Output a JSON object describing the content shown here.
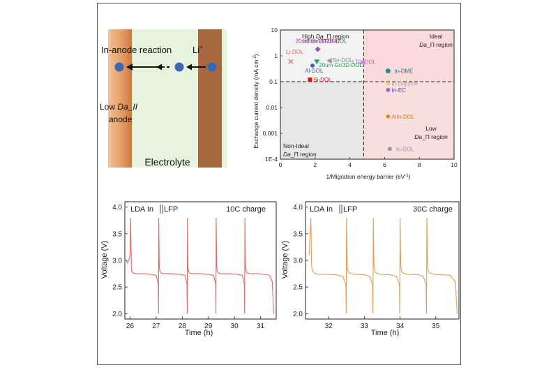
{
  "schematic": {
    "reaction_label": "In-anode reaction",
    "li_label": "Li",
    "li_sup": "+",
    "anode_label_prefix": "Low ",
    "anode_label_italic": "Da_II",
    "anode_label_line2": "anode",
    "electrolyte_label": "Electrolyte",
    "colors": {
      "anode": "#e8a06a",
      "electrolyte": "#e6f3dd",
      "cathode": "#a8683f",
      "ion": "#3a66b8"
    }
  },
  "chart_data": [
    {
      "type": "scatter",
      "xlabel": "1/Migration energy barrier (eV",
      "xlabel_sup": "-1",
      "xlabel_suffix": ")",
      "ylabel": "Exchange current density (mA cm",
      "ylabel_sup": "-2",
      "ylabel_suffix": ")",
      "xlim": [
        0,
        10
      ],
      "ylim": [
        0.0001,
        10
      ],
      "yscale": "log",
      "xticks": [
        "0",
        "2",
        "4",
        "6",
        "8",
        "10"
      ],
      "yticks": [
        "1E-4",
        "0.001",
        "0.01",
        "0.1",
        "1",
        "10"
      ],
      "threshold_x": 4.8,
      "threshold_y": 0.1,
      "regions": [
        {
          "id": "high",
          "prefix": "High ",
          "italic": "Da",
          "suffix": "_Π region"
        },
        {
          "id": "ideal",
          "line1": "Ideal",
          "italic": "Da",
          "suffix": "_Π region"
        },
        {
          "id": "nonideal",
          "line1": "Non-Ideal",
          "italic": "Da",
          "suffix": "_Π region"
        },
        {
          "id": "low",
          "line1": "Low",
          "italic": "Da",
          "suffix": "_Π region"
        }
      ],
      "points": [
        {
          "label": "Li-DOL",
          "x": 0.6,
          "y": 0.6,
          "color": "#e06060",
          "marker": "x"
        },
        {
          "label": "20um Gr/2D-DOL",
          "x": 2.15,
          "y": 1.8,
          "color": "#8a5aa8",
          "label_color": "#c030c0",
          "marker": "diamond"
        },
        {
          "label": "50um Gr/2D-DOL",
          "x": 2.6,
          "y": 1.5,
          "color": "#8a5aa8",
          "label_color": "#555555",
          "marker": "none"
        },
        {
          "label": "Sn-DOL",
          "x": 2.8,
          "y": 0.65,
          "color": "#999999",
          "label_color": "#888888",
          "marker": "tri-left"
        },
        {
          "label": "LTO-DOL",
          "x": 4.7,
          "y": 0.55,
          "color": "#d090d0",
          "label_color": "#c060c0",
          "marker": "tri-left"
        },
        {
          "label": "20um Gr/3D-DOL",
          "x": 2.1,
          "y": 0.6,
          "color": "#2aa070",
          "label_color": "#2aa060",
          "marker": "tri-down"
        },
        {
          "label": "Al-DOL",
          "x": 1.85,
          "y": 0.42,
          "color": "#3a66b8",
          "label_color": "#3a66b8",
          "marker": "circle"
        },
        {
          "label": "Si-DOL",
          "x": 1.7,
          "y": 0.12,
          "color": "#cc2020",
          "label_color": "#cc2020",
          "marker": "square"
        },
        {
          "label": "In-DME",
          "x": 6.2,
          "y": 0.26,
          "color": "#2a8a8a",
          "label_color": "#2a7a7a",
          "marker": "pentagon"
        },
        {
          "label": "In-Diglyme",
          "x": 6.2,
          "y": 0.085,
          "color": "#f0c080",
          "label_color": "#aaaaaa",
          "marker": "star"
        },
        {
          "label": "In-EC",
          "x": 6.2,
          "y": 0.048,
          "color": "#8a70c8",
          "label_color": "#5a4aa8",
          "marker": "circle"
        },
        {
          "label": "AlIn-DOL",
          "x": 6.2,
          "y": 0.0045,
          "color": "#d08020",
          "label_color": "#d08020",
          "marker": "star"
        },
        {
          "label": "In-DOL",
          "x": 6.3,
          "y": 0.00025,
          "color": "#8a9ab0",
          "label_color": "#8a9ab0",
          "marker": "circle"
        }
      ]
    },
    {
      "type": "line",
      "legend_text": "LDA In",
      "legend_suffix": "LFP",
      "annotation": "10C charge",
      "xlabel": "Time (h)",
      "ylabel": "Voltage (V)",
      "xlim": [
        25.8,
        31.6
      ],
      "ylim": [
        1.9,
        4.1
      ],
      "xticks": [
        "26",
        "27",
        "28",
        "29",
        "30",
        "31"
      ],
      "yticks": [
        "2.0",
        "2.5",
        "3.0",
        "3.5",
        "4.0"
      ],
      "color": "#e06a6a",
      "x": [
        25.85,
        25.9,
        25.95,
        26.0,
        26.02,
        26.05,
        26.07,
        26.1,
        26.12,
        26.15,
        26.25,
        26.5,
        26.8,
        27.0,
        27.05,
        27.08,
        27.09,
        27.1,
        27.12,
        27.14,
        27.16,
        27.18,
        27.2,
        27.3,
        27.6,
        27.9,
        28.1,
        28.15,
        28.18,
        28.19,
        28.2,
        28.22,
        28.24,
        28.26,
        28.28,
        28.3,
        28.4,
        28.7,
        29.0,
        29.2,
        29.25,
        29.28,
        29.29,
        29.3,
        29.32,
        29.34,
        29.36,
        29.38,
        29.4,
        29.5,
        29.8,
        30.1,
        30.3,
        30.35,
        30.38,
        30.39,
        30.4,
        30.42,
        30.44,
        30.46,
        30.48,
        30.5,
        30.6,
        30.9,
        31.2,
        31.35,
        31.45,
        31.5
      ],
      "y": [
        3.0,
        2.95,
        3.0,
        3.1,
        3.8,
        2.85,
        2.78,
        2.78,
        2.76,
        2.76,
        2.75,
        2.75,
        2.74,
        2.72,
        2.62,
        2.55,
        2.0,
        3.8,
        2.88,
        2.8,
        2.78,
        2.77,
        2.76,
        2.75,
        2.75,
        2.74,
        2.72,
        2.62,
        2.55,
        2.0,
        3.8,
        2.88,
        2.8,
        2.78,
        2.77,
        2.76,
        2.75,
        2.75,
        2.74,
        2.72,
        2.62,
        2.55,
        2.0,
        3.8,
        2.88,
        2.8,
        2.78,
        2.77,
        2.76,
        2.75,
        2.75,
        2.74,
        2.72,
        2.62,
        2.55,
        2.0,
        3.8,
        2.88,
        2.8,
        2.78,
        2.77,
        2.76,
        2.75,
        2.75,
        2.74,
        2.72,
        2.6,
        2.0
      ]
    },
    {
      "type": "line",
      "legend_text": "LDA In",
      "legend_suffix": "LFP",
      "annotation": "30C charge",
      "xlabel": "Time (h)",
      "ylabel": "Voltage (V)",
      "xlim": [
        31.35,
        35.65
      ],
      "ylim": [
        1.9,
        4.1
      ],
      "xticks": [
        "32",
        "33",
        "34",
        "35"
      ],
      "yticks": [
        "2.0",
        "2.5",
        "3.0",
        "3.5",
        "4.0"
      ],
      "color": "#e0a050",
      "x": [
        31.45,
        31.5,
        31.52,
        31.55,
        31.6,
        31.7,
        31.9,
        32.2,
        32.4,
        32.45,
        32.48,
        32.49,
        32.5,
        32.52,
        32.55,
        32.6,
        32.7,
        33.0,
        33.15,
        33.2,
        33.23,
        33.24,
        33.25,
        33.27,
        33.3,
        33.35,
        33.45,
        33.7,
        33.9,
        33.95,
        33.98,
        33.99,
        34.0,
        34.02,
        34.05,
        34.1,
        34.2,
        34.5,
        34.65,
        34.7,
        34.73,
        34.74,
        34.75,
        34.77,
        34.8,
        34.85,
        34.95,
        35.2,
        35.4,
        35.55,
        35.6
      ],
      "y": [
        3.1,
        3.8,
        2.9,
        2.8,
        2.76,
        2.74,
        2.74,
        2.73,
        2.7,
        2.6,
        2.55,
        2.0,
        3.8,
        2.88,
        2.78,
        2.76,
        2.74,
        2.73,
        2.7,
        2.6,
        2.55,
        2.0,
        3.8,
        2.88,
        2.78,
        2.76,
        2.74,
        2.73,
        2.7,
        2.6,
        2.55,
        2.0,
        3.8,
        2.88,
        2.78,
        2.76,
        2.74,
        2.73,
        2.7,
        2.6,
        2.55,
        2.0,
        3.8,
        2.88,
        2.78,
        2.76,
        2.74,
        2.73,
        2.72,
        2.6,
        2.0
      ]
    }
  ]
}
